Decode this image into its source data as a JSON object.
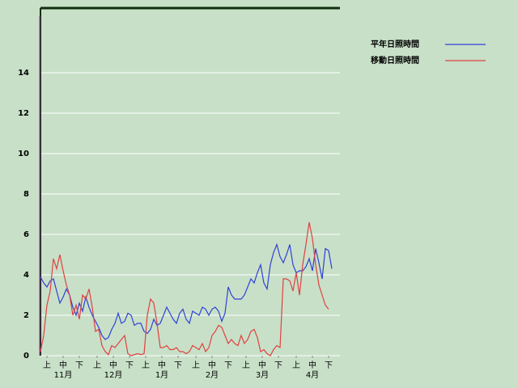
{
  "chart_data": {
    "type": "line",
    "x": [
      0,
      2,
      4,
      6,
      8,
      10,
      12,
      14,
      16,
      18,
      20,
      22,
      24,
      26,
      28,
      30,
      32,
      34,
      36,
      38,
      40,
      42,
      44,
      46,
      48,
      50,
      52,
      54,
      56,
      58,
      60,
      62,
      64,
      66,
      68,
      70,
      72,
      74,
      76,
      78,
      80,
      82,
      84,
      86,
      88,
      90,
      92,
      94,
      96,
      98,
      100,
      102,
      104,
      106,
      108,
      110,
      112,
      114,
      116,
      118,
      120,
      122,
      124,
      126,
      128,
      130,
      132,
      134,
      136,
      138,
      140,
      142,
      144,
      146,
      148,
      150,
      152,
      154,
      156,
      158,
      160,
      162,
      164,
      166,
      168,
      170,
      172,
      174,
      176,
      178,
      180
    ],
    "series": [
      {
        "name": "平年日照時間",
        "color": "#3040d8",
        "values": [
          3.9,
          3.6,
          3.4,
          3.7,
          3.8,
          3.2,
          2.6,
          2.9,
          3.3,
          3.0,
          2.4,
          2.0,
          2.6,
          2.2,
          2.9,
          2.4,
          2.0,
          1.7,
          1.4,
          1.0,
          0.8,
          0.9,
          1.3,
          1.6,
          2.1,
          1.6,
          1.7,
          2.1,
          2.0,
          1.5,
          1.6,
          1.6,
          1.2,
          1.1,
          1.3,
          1.8,
          1.5,
          1.6,
          2.0,
          2.4,
          2.1,
          1.8,
          1.6,
          2.1,
          2.3,
          1.8,
          1.6,
          2.2,
          2.1,
          2.0,
          2.4,
          2.3,
          2.0,
          2.3,
          2.4,
          2.2,
          1.7,
          2.1,
          3.4,
          3.0,
          2.8,
          2.8,
          2.8,
          3.0,
          3.4,
          3.8,
          3.6,
          4.1,
          4.5,
          3.6,
          3.3,
          4.5,
          5.1,
          5.5,
          4.9,
          4.6,
          5.0,
          5.5,
          4.5,
          4.1,
          4.2,
          4.2,
          4.4,
          4.8,
          4.2,
          5.3,
          4.6,
          3.8,
          5.3,
          5.2,
          4.3
        ]
      },
      {
        "name": "移動日照時間",
        "color": "#e04040",
        "values": [
          0.2,
          1.0,
          2.5,
          3.2,
          4.8,
          4.3,
          5.0,
          4.2,
          3.5,
          3.0,
          2.0,
          2.5,
          1.8,
          3.0,
          2.8,
          3.3,
          2.4,
          1.2,
          1.3,
          0.5,
          0.2,
          0.05,
          0.5,
          0.4,
          0.6,
          0.8,
          1.0,
          0.1,
          0.0,
          0.05,
          0.1,
          0.05,
          0.1,
          2.0,
          2.8,
          2.6,
          1.6,
          0.4,
          0.4,
          0.5,
          0.3,
          0.3,
          0.4,
          0.2,
          0.2,
          0.1,
          0.2,
          0.5,
          0.4,
          0.3,
          0.6,
          0.2,
          0.4,
          1.0,
          1.2,
          1.5,
          1.4,
          1.0,
          0.6,
          0.8,
          0.6,
          0.5,
          1.0,
          0.6,
          0.8,
          1.2,
          1.3,
          0.9,
          0.2,
          0.3,
          0.1,
          0.0,
          0.3,
          0.5,
          0.4,
          3.8,
          3.8,
          3.7,
          3.2,
          4.1,
          3.0,
          4.5,
          5.5,
          6.6,
          5.8,
          4.5,
          3.5,
          3.0,
          2.5,
          2.3,
          null
        ]
      }
    ],
    "xlim": [
      0,
      185
    ],
    "xticks": [
      {
        "value": 4,
        "label": "上"
      },
      {
        "value": 14,
        "label": "中"
      },
      {
        "value": 24,
        "label": "下"
      },
      {
        "value": 35,
        "label": "上"
      },
      {
        "value": 45,
        "label": "中"
      },
      {
        "value": 55,
        "label": "下"
      },
      {
        "value": 65,
        "label": "上"
      },
      {
        "value": 75,
        "label": "中"
      },
      {
        "value": 85,
        "label": "下"
      },
      {
        "value": 96,
        "label": "上"
      },
      {
        "value": 106,
        "label": "中"
      },
      {
        "value": 116,
        "label": "下"
      },
      {
        "value": 127,
        "label": "上"
      },
      {
        "value": 137,
        "label": "中"
      },
      {
        "value": 147,
        "label": "下"
      },
      {
        "value": 158,
        "label": "上"
      },
      {
        "value": 168,
        "label": "中"
      },
      {
        "value": 178,
        "label": "下"
      }
    ],
    "month_ticks": [
      {
        "value": 14,
        "label": "11月"
      },
      {
        "value": 45,
        "label": "12月"
      },
      {
        "value": 75,
        "label": "1月"
      },
      {
        "value": 106,
        "label": "2月"
      },
      {
        "value": 137,
        "label": "3月"
      },
      {
        "value": 168,
        "label": "4月"
      }
    ],
    "ylim": [
      0,
      17.2
    ],
    "yticks": [
      0,
      2,
      4,
      6,
      8,
      10,
      12,
      14
    ],
    "grid": true,
    "legend": "top-right"
  }
}
